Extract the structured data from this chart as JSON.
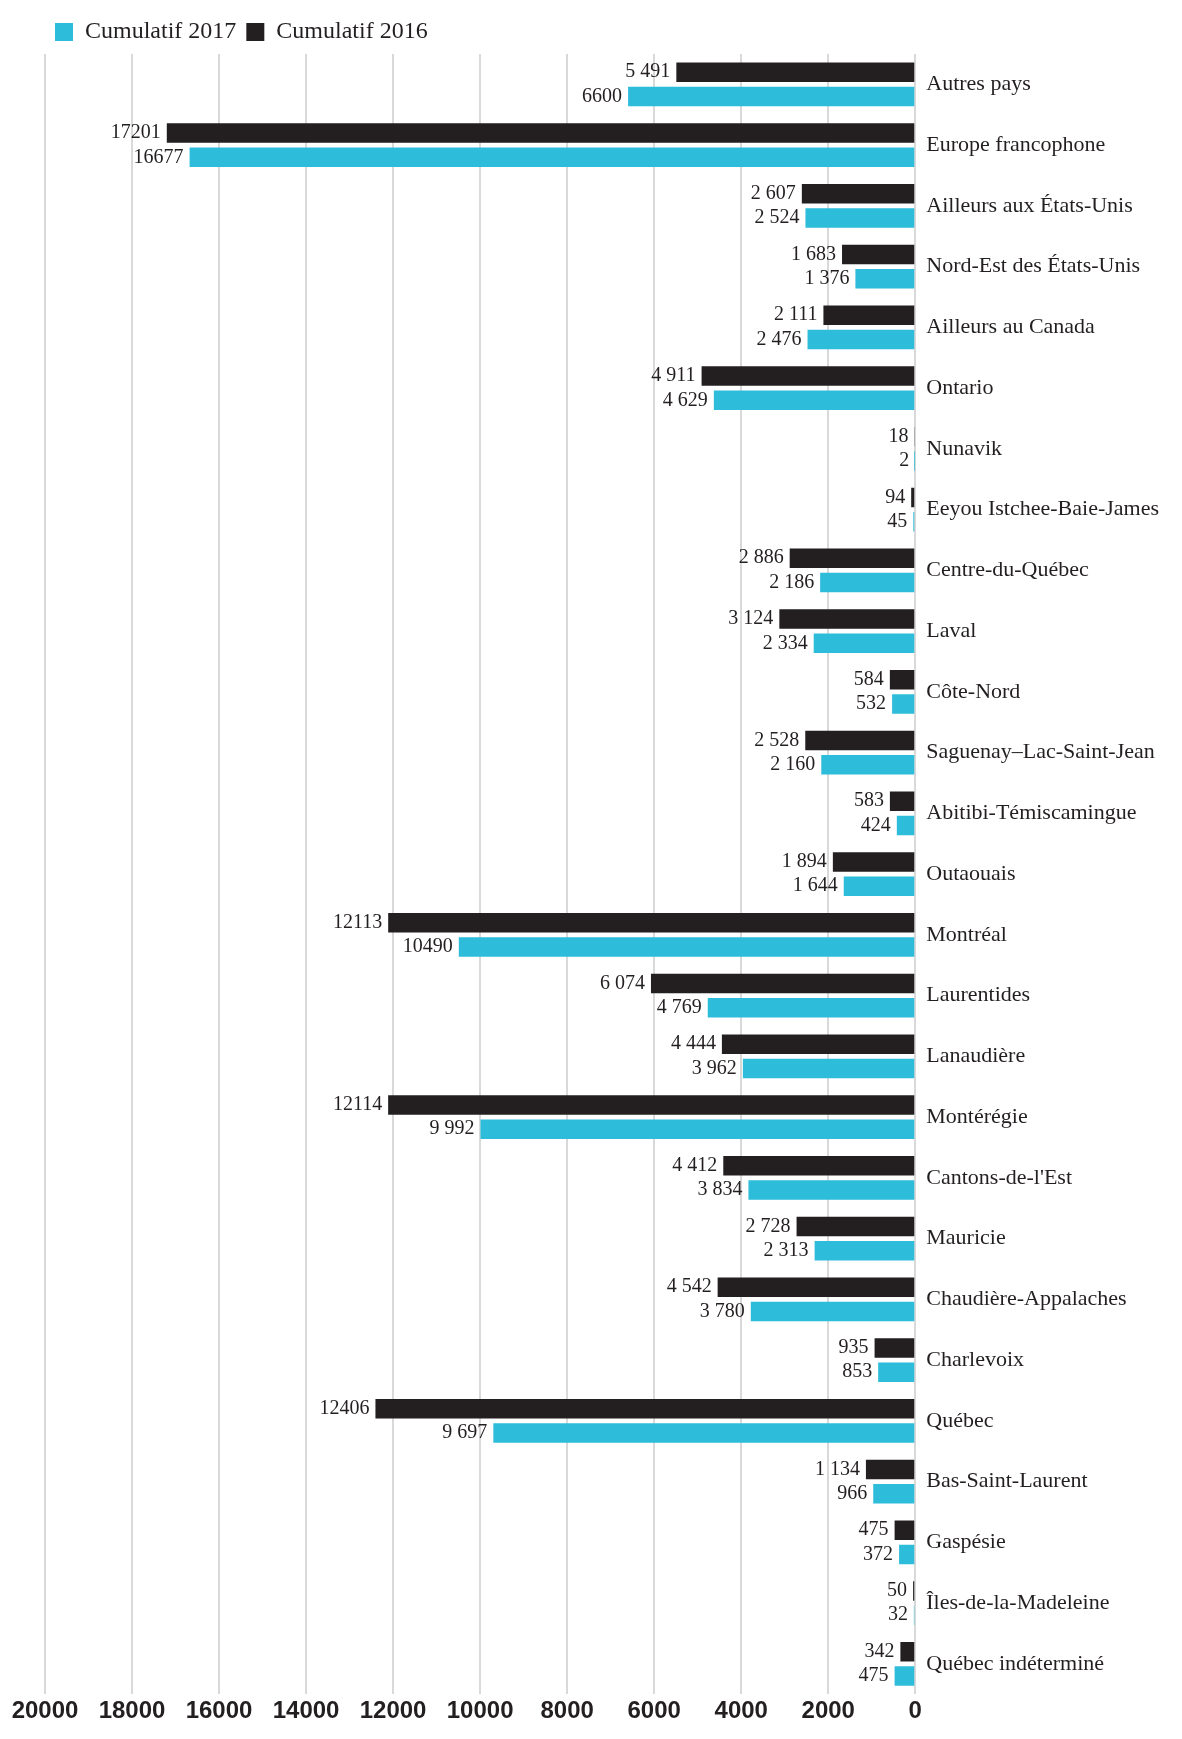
{
  "chart_data": {
    "type": "bar",
    "orientation": "horizontal",
    "categories": [
      "Autres pays",
      "Europe francophone",
      "Ailleurs aux États-Unis",
      "Nord-Est des États-Unis",
      "Ailleurs au Canada",
      "Ontario",
      "Nunavik",
      "Eeyou Istchee-Baie-James",
      "Centre-du-Québec",
      "Laval",
      "Côte-Nord",
      "Saguenay–Lac-Saint-Jean",
      "Abitibi-Témiscamingue",
      "Outaouais",
      "Montréal",
      "Laurentides",
      "Lanaudière",
      "Montérégie",
      "Cantons-de-l'Est",
      "Mauricie",
      "Chaudière-Appalaches",
      "Charlevoix",
      "Québec",
      "Bas-Saint-Laurent",
      "Gaspésie",
      "Îles-de-la-Madeleine",
      "Québec indéterminé"
    ],
    "series": [
      {
        "name": "Cumulatif 2016",
        "color": "#231f20",
        "values": [
          5491,
          17201,
          2607,
          1683,
          2111,
          4911,
          18,
          94,
          2886,
          3124,
          584,
          2528,
          583,
          1894,
          12113,
          6074,
          4444,
          12114,
          4412,
          2728,
          4542,
          935,
          12406,
          1134,
          475,
          50,
          342
        ],
        "value_labels": [
          "5 491",
          "17201",
          "2 607",
          "1 683",
          "2 111",
          "4 911",
          "18",
          "94",
          "2 886",
          "3 124",
          "584",
          "2 528",
          "583",
          "1 894",
          "12113",
          "6 074",
          "4 444",
          "12114",
          "4 412",
          "2 728",
          "4 542",
          "935",
          "12406",
          "1 134",
          "475",
          "50",
          "342"
        ]
      },
      {
        "name": "Cumulatif 2017",
        "color": "#2dbcd9",
        "values": [
          6600,
          16677,
          2524,
          1376,
          2476,
          4629,
          2,
          45,
          2186,
          2334,
          532,
          2160,
          424,
          1644,
          10490,
          4769,
          3962,
          9992,
          3834,
          2313,
          3780,
          853,
          9697,
          966,
          372,
          32,
          475
        ],
        "value_labels": [
          "6600",
          "16677",
          "2 524",
          "1 376",
          "2 476",
          "4 629",
          "2",
          "45",
          "2 186",
          "2 334",
          "532",
          "2 160",
          "424",
          "1 644",
          "10490",
          "4 769",
          "3 962",
          "9 992",
          "3 834",
          "2 313",
          "3 780",
          "853",
          "9 697",
          "966",
          "372",
          "32",
          "475"
        ]
      }
    ],
    "xlim": [
      20000,
      0
    ],
    "xticks": [
      0,
      2000,
      4000,
      6000,
      8000,
      10000,
      12000,
      14000,
      16000,
      18000,
      20000
    ],
    "grid": "x",
    "legend": "top left"
  }
}
